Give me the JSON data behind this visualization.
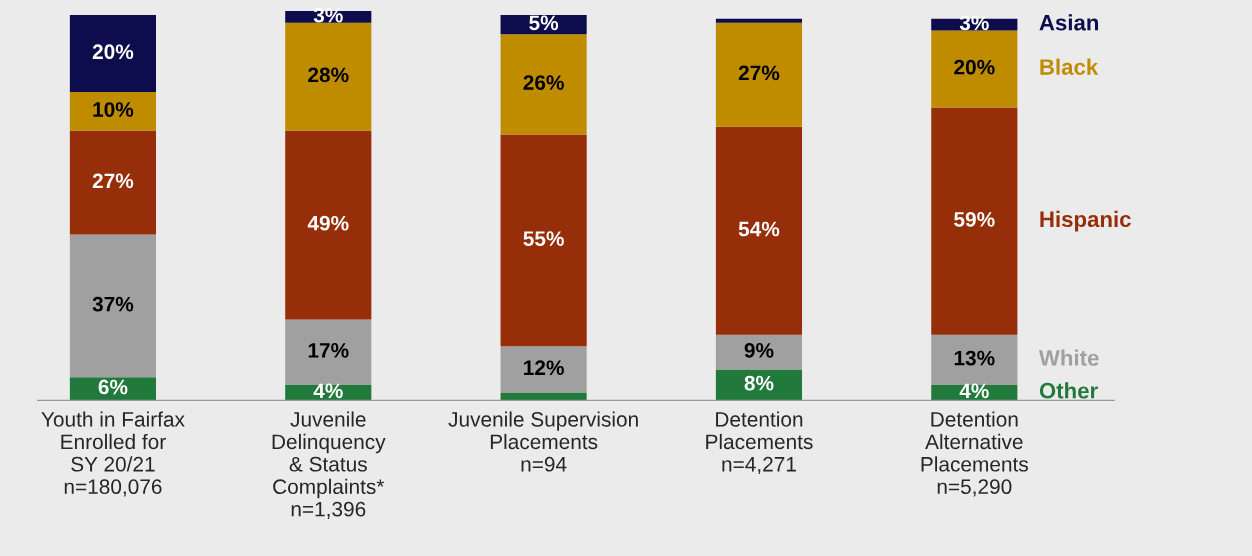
{
  "chart_data": {
    "type": "bar",
    "stacked": true,
    "legend": "right",
    "grid": false,
    "categories": [
      "Youth in Fairfax\nEnrolled for\nSY 20/21\nn=180,076",
      "Juvenile\nDelinquency\n& Status\nComplaints*\nn=1,396",
      "Juvenile Supervision\nPlacements\nn=94",
      "Detention\nPlacements\nn=4,271",
      "Detention\nAlternative\nPlacements\nn=5,290"
    ],
    "series": [
      {
        "name": "Other",
        "color": "#217a3c",
        "values": [
          6,
          4,
          2,
          8,
          4
        ],
        "value_labels": [
          "6%",
          "4%",
          null,
          "8%",
          "4%"
        ]
      },
      {
        "name": "White",
        "color": "#a0a0a0",
        "values": [
          37,
          17,
          12,
          9,
          13
        ],
        "value_labels": [
          "37%",
          "17%",
          "12%",
          "9%",
          "13%"
        ]
      },
      {
        "name": "Hispanic",
        "color": "#962e0a",
        "values": [
          27,
          49,
          55,
          54,
          59
        ],
        "value_labels": [
          "27%",
          "49%",
          "55%",
          "54%",
          "59%"
        ]
      },
      {
        "name": "Black",
        "color": "#bf8c00",
        "values": [
          10,
          28,
          26,
          27,
          20
        ],
        "value_labels": [
          "10%",
          "28%",
          "26%",
          "27%",
          "20%"
        ]
      },
      {
        "name": "Asian",
        "color": "#0d0d4d",
        "values": [
          20,
          3,
          5,
          1,
          3
        ],
        "value_labels": [
          "20%",
          "3%",
          "5%",
          null,
          "3%"
        ]
      }
    ]
  }
}
